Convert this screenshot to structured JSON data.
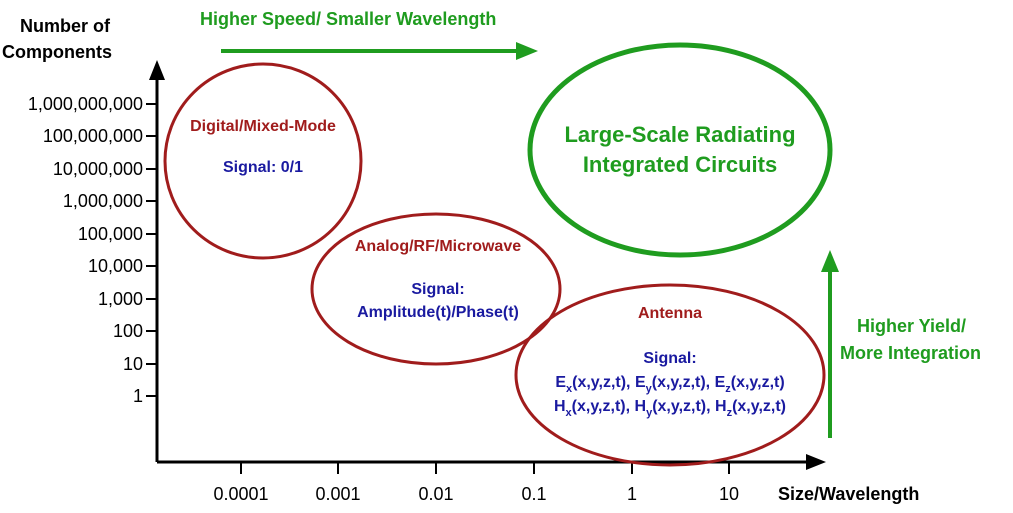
{
  "axes": {
    "y_title_line1": "Number of",
    "y_title_line2": "Components",
    "x_title": "Size/Wavelength",
    "y_ticks": [
      "1,000,000,000",
      "100,000,000",
      "10,000,000",
      "1,000,000",
      "100,000",
      "10,000",
      "1,000",
      "100",
      "10",
      "1"
    ],
    "x_ticks": [
      "0.0001",
      "0.001",
      "0.01",
      "0.1",
      "1",
      "10"
    ]
  },
  "arrows": {
    "top_label": "Higher Speed/ Smaller Wavelength",
    "right_label_line1": "Higher Yield/",
    "right_label_line2": "More Integration"
  },
  "regions": {
    "digital": {
      "title": "Digital/Mixed-Mode",
      "signal": "Signal: 0/1"
    },
    "analog": {
      "title": "Analog/RF/Microwave",
      "signal_label": "Signal:",
      "signal_value": "Amplitude(t)/Phase(t)"
    },
    "antenna": {
      "title": "Antenna",
      "signal_label": "Signal:"
    },
    "large_scale": {
      "line1": "Large-Scale Radiating",
      "line2": "Integrated Circuits"
    }
  },
  "antenna_fields": {
    "row1": [
      {
        "base": "E",
        "sub": "x",
        "args": "(x,y,z,t)",
        "sep": ", "
      },
      {
        "base": "E",
        "sub": "y",
        "args": "(x,y,z,t)",
        "sep": ", "
      },
      {
        "base": "E",
        "sub": "z",
        "args": "(x,y,z,t)",
        "sep": ""
      }
    ],
    "row2": [
      {
        "base": "H",
        "sub": "x",
        "args": "(x,y,z,t)",
        "sep": ", "
      },
      {
        "base": "H",
        "sub": "y",
        "args": "(x,y,z,t)",
        "sep": ", "
      },
      {
        "base": "H",
        "sub": "z",
        "args": "(x,y,z,t)",
        "sep": ""
      }
    ]
  },
  "colors": {
    "red": "#a01c1c",
    "blue": "#1a1aa0",
    "green": "#1f9c1f",
    "axis": "#000000"
  }
}
